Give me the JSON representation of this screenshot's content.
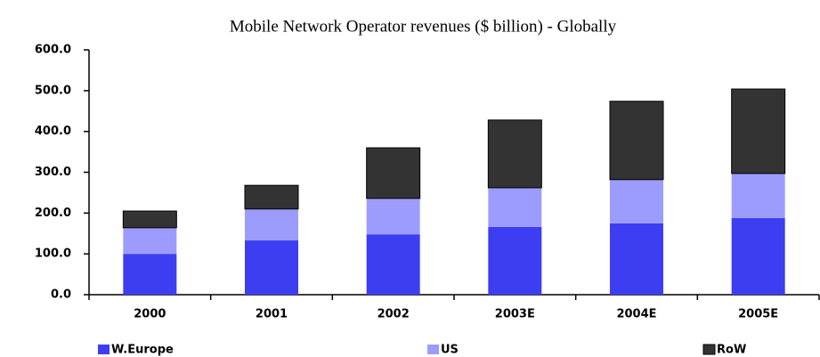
{
  "chart_data": {
    "type": "stacked_bar",
    "title": "Mobile Network Operator revenues ($ billion) - Globally",
    "categories": [
      "2000",
      "2001",
      "2002",
      "2003E",
      "2004E",
      "2005E"
    ],
    "series": [
      {
        "name": "W.Europe",
        "color": "#3d3df2",
        "values": [
          100,
          133,
          148,
          166,
          175,
          188
        ]
      },
      {
        "name": "US",
        "color": "#9c9cff",
        "values": [
          64,
          77,
          88,
          96,
          107,
          109
        ]
      },
      {
        "name": "RoW",
        "color": "#333333",
        "values": [
          41,
          58,
          124,
          166,
          192,
          207
        ]
      }
    ],
    "ylim": [
      0,
      600
    ],
    "yticks": [
      {
        "value": 0,
        "label": "0.0"
      },
      {
        "value": 100,
        "label": "100.0"
      },
      {
        "value": 200,
        "label": "200.0"
      },
      {
        "value": 300,
        "label": "300.0"
      },
      {
        "value": 400,
        "label": "400.0"
      },
      {
        "value": 500,
        "label": "500.0"
      },
      {
        "value": 600,
        "label": "600.0"
      }
    ],
    "legend": "bottom"
  }
}
